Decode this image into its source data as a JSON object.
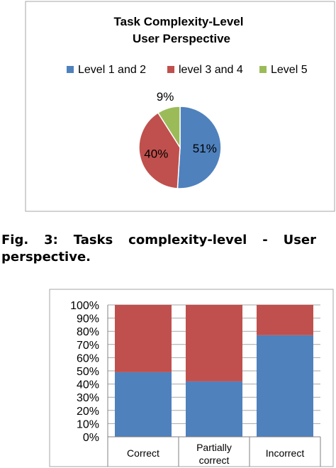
{
  "caption": {
    "line1": "Fig. 3: Tasks complexity-level - User",
    "line2": "perspective."
  },
  "chart_data": [
    {
      "type": "pie",
      "title": "Task Complexity-Level",
      "subtitle": "User Perspective",
      "legend_position": "top",
      "categories": [
        "Level 1 and 2",
        "level 3 and 4",
        "Level 5"
      ],
      "values": [
        51,
        40,
        9
      ],
      "value_labels": [
        "51%",
        "40%",
        "9%"
      ],
      "colors": [
        "#4f81bd",
        "#c0504d",
        "#9bbb59"
      ]
    },
    {
      "type": "bar",
      "stacked": true,
      "categories": [
        "Correct",
        "Partially correct",
        "Incorrect"
      ],
      "category_lines": [
        [
          "Correct"
        ],
        [
          "Partially",
          "correct"
        ],
        [
          "Incorrect"
        ]
      ],
      "series": [
        {
          "values": [
            49,
            42,
            77
          ],
          "color": "#4f81bd"
        },
        {
          "values": [
            51,
            58,
            23
          ],
          "color": "#c0504d"
        }
      ],
      "ylim": [
        0,
        100
      ],
      "yticks": [
        "0%",
        "10%",
        "20%",
        "30%",
        "40%",
        "50%",
        "60%",
        "70%",
        "80%",
        "90%",
        "100%"
      ],
      "grid": true,
      "legend": "none"
    }
  ]
}
